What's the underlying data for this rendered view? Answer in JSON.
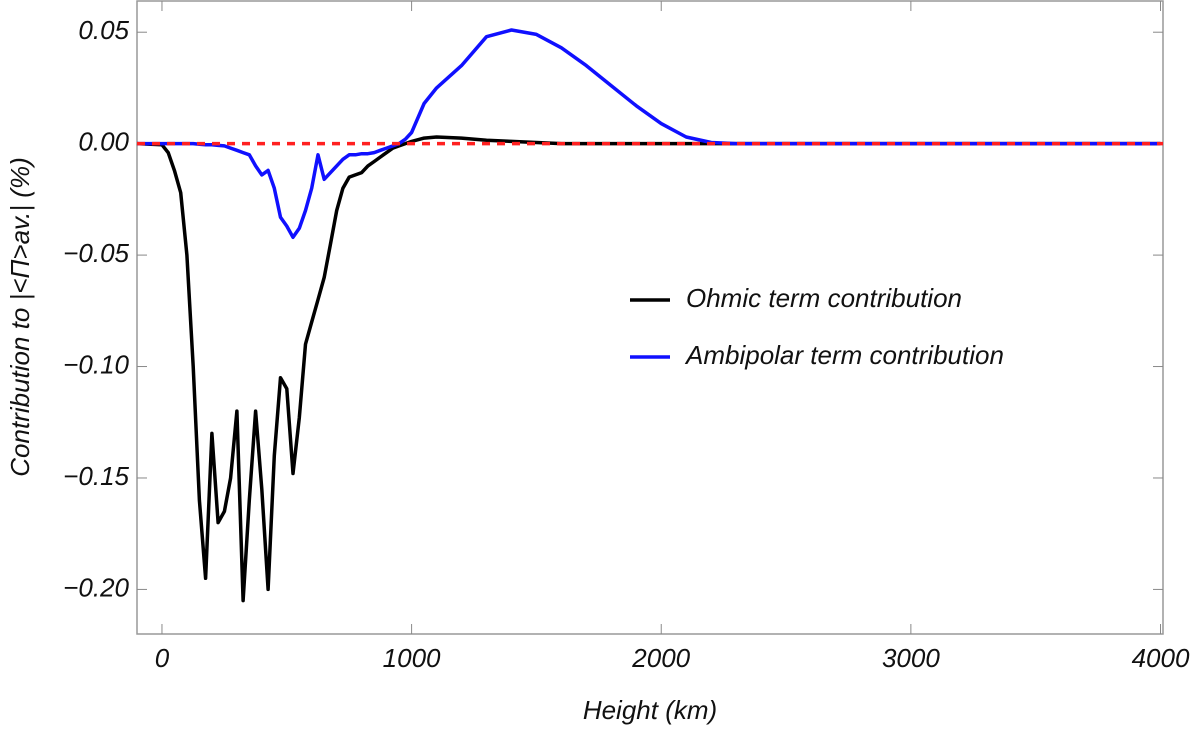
{
  "chart_data": {
    "type": "line",
    "xlabel": "Height (km)",
    "ylabel": "Contribution to |<Π>av.|   (%)",
    "x": [
      -100,
      0,
      25,
      50,
      75,
      100,
      125,
      150,
      175,
      200,
      225,
      250,
      275,
      300,
      325,
      350,
      375,
      400,
      425,
      450,
      475,
      500,
      525,
      550,
      575,
      600,
      625,
      650,
      675,
      700,
      725,
      750,
      775,
      800,
      825,
      850,
      875,
      900,
      925,
      950,
      975,
      1000,
      1050,
      1100,
      1200,
      1300,
      1400,
      1500,
      1600,
      1700,
      1800,
      1900,
      2000,
      2100,
      2200,
      2300,
      4000
    ],
    "series": [
      {
        "name": "Ohmic term contribution",
        "color": "#000000",
        "values": [
          0,
          -0.0005,
          -0.004,
          -0.012,
          -0.022,
          -0.05,
          -0.1,
          -0.16,
          -0.195,
          -0.13,
          -0.17,
          -0.165,
          -0.15,
          -0.12,
          -0.205,
          -0.16,
          -0.12,
          -0.155,
          -0.2,
          -0.14,
          -0.105,
          -0.11,
          -0.148,
          -0.123,
          -0.09,
          -0.08,
          -0.07,
          -0.06,
          -0.045,
          -0.03,
          -0.02,
          -0.015,
          -0.014,
          -0.013,
          -0.01,
          -0.008,
          -0.006,
          -0.004,
          -0.002,
          -0.001,
          0,
          0.001,
          0.0025,
          0.003,
          0.0025,
          0.0015,
          0.001,
          0.0005,
          0,
          0,
          0,
          0,
          0,
          0,
          0,
          0,
          0
        ]
      },
      {
        "name": "Ambipolar term contribution",
        "color": "#1010ff",
        "values": [
          0,
          0,
          0,
          0,
          0,
          0,
          0,
          -0.0003,
          -0.0005,
          -0.0005,
          -0.0008,
          -0.001,
          -0.002,
          -0.003,
          -0.004,
          -0.005,
          -0.01,
          -0.014,
          -0.012,
          -0.02,
          -0.033,
          -0.037,
          -0.042,
          -0.038,
          -0.03,
          -0.02,
          -0.005,
          -0.016,
          -0.013,
          -0.01,
          -0.007,
          -0.005,
          -0.005,
          -0.0045,
          -0.0045,
          -0.004,
          -0.003,
          -0.002,
          -0.001,
          0,
          0.002,
          0.005,
          0.018,
          0.025,
          0.035,
          0.048,
          0.051,
          0.049,
          0.043,
          0.035,
          0.026,
          0.017,
          0.009,
          0.003,
          0.0005,
          0,
          0
        ]
      }
    ],
    "reference_line": {
      "value": 0,
      "color": "#ff2020",
      "dashed": true
    },
    "xlim": [
      -100,
      4010
    ],
    "ylim": [
      -0.22,
      0.064
    ],
    "xticks": [
      0,
      1000,
      2000,
      3000,
      4000
    ],
    "yticks": [
      {
        "value": -0.2,
        "label": "−0.20"
      },
      {
        "value": -0.15,
        "label": "−0.15"
      },
      {
        "value": -0.1,
        "label": "−0.10"
      },
      {
        "value": -0.05,
        "label": "−0.05"
      },
      {
        "value": 0,
        "label": "0.00"
      },
      {
        "value": 0.05,
        "label": "0.05"
      }
    ],
    "legend": "right"
  }
}
